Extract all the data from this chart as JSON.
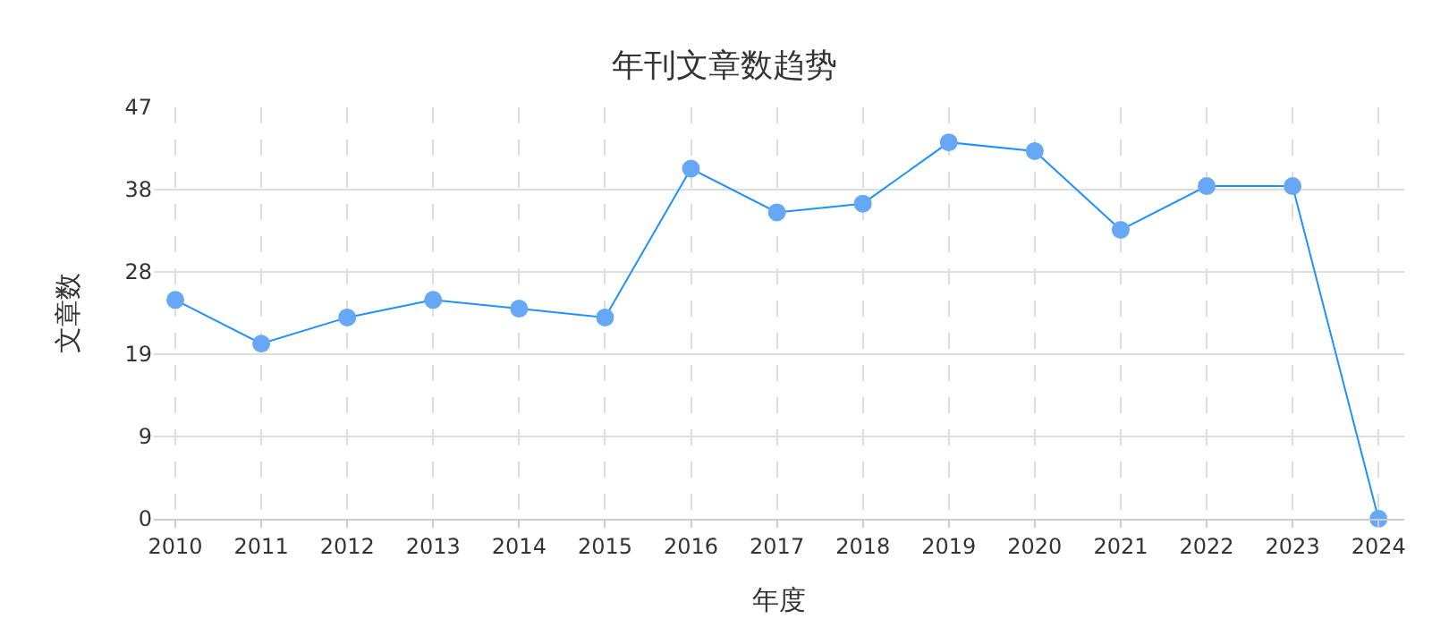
{
  "chart_data": {
    "type": "line",
    "title": "年刊文章数趋势",
    "xlabel": "年度",
    "ylabel": "文章数",
    "categories": [
      "2010",
      "2011",
      "2012",
      "2013",
      "2014",
      "2015",
      "2016",
      "2017",
      "2018",
      "2019",
      "2020",
      "2021",
      "2022",
      "2023",
      "2024"
    ],
    "series": [
      {
        "color": "#1e90ff",
        "values": [
          25,
          20,
          23,
          25,
          24,
          23,
          40,
          35,
          36,
          43,
          42,
          33,
          38,
          38,
          0
        ]
      }
    ],
    "ylim": [
      0,
      47
    ],
    "yticks": [
      0,
      {
        "value": 9.4,
        "label": "9"
      },
      {
        "value": 18.8,
        "label": "19"
      },
      {
        "value": 28.2,
        "label": "28"
      },
      {
        "value": 37.6,
        "label": "38"
      },
      47
    ],
    "grid": true,
    "marker": "circle",
    "line_style": "solid"
  }
}
